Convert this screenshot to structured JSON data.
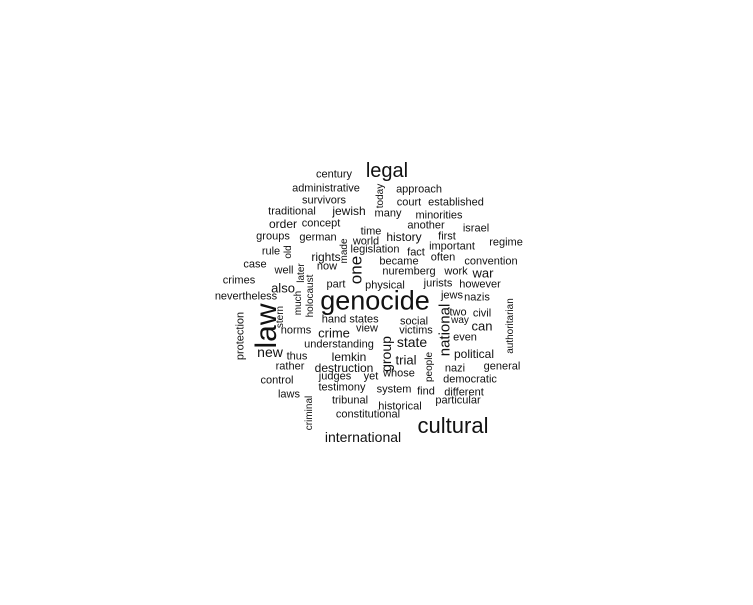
{
  "word_cloud": {
    "words": [
      {
        "text": "genocide"
      },
      {
        "text": "law",
        "vertical": true
      },
      {
        "text": "cultural"
      },
      {
        "text": "legal"
      },
      {
        "text": "international"
      },
      {
        "text": "one",
        "vertical": true
      },
      {
        "text": "national",
        "vertical": true
      },
      {
        "text": "state"
      },
      {
        "text": "new"
      },
      {
        "text": "group",
        "vertical": true
      },
      {
        "text": "jewish"
      },
      {
        "text": "crime"
      },
      {
        "text": "also"
      },
      {
        "text": "history"
      },
      {
        "text": "trial"
      },
      {
        "text": "war"
      },
      {
        "text": "political"
      },
      {
        "text": "destruction"
      },
      {
        "text": "lemkin"
      },
      {
        "text": "can"
      },
      {
        "text": "order"
      },
      {
        "text": "rights"
      },
      {
        "text": "century"
      },
      {
        "text": "administrative"
      },
      {
        "text": "survivors"
      },
      {
        "text": "today",
        "vertical": true
      },
      {
        "text": "approach"
      },
      {
        "text": "court"
      },
      {
        "text": "established"
      },
      {
        "text": "traditional"
      },
      {
        "text": "many"
      },
      {
        "text": "minorities"
      },
      {
        "text": "concept"
      },
      {
        "text": "another"
      },
      {
        "text": "israel"
      },
      {
        "text": "groups"
      },
      {
        "text": "german"
      },
      {
        "text": "time"
      },
      {
        "text": "world"
      },
      {
        "text": "first"
      },
      {
        "text": "regime"
      },
      {
        "text": "rule"
      },
      {
        "text": "legislation"
      },
      {
        "text": "fact"
      },
      {
        "text": "important"
      },
      {
        "text": "case"
      },
      {
        "text": "made",
        "vertical": true
      },
      {
        "text": "became"
      },
      {
        "text": "often"
      },
      {
        "text": "convention"
      },
      {
        "text": "crimes"
      },
      {
        "text": "well"
      },
      {
        "text": "old",
        "vertical": true
      },
      {
        "text": "later",
        "vertical": true
      },
      {
        "text": "now"
      },
      {
        "text": "nuremberg"
      },
      {
        "text": "work"
      },
      {
        "text": "part"
      },
      {
        "text": "physical"
      },
      {
        "text": "jurists"
      },
      {
        "text": "however"
      },
      {
        "text": "nevertheless"
      },
      {
        "text": "holocaust",
        "vertical": true
      },
      {
        "text": "much",
        "vertical": true
      },
      {
        "text": "jews"
      },
      {
        "text": "nazis"
      },
      {
        "text": "stern",
        "vertical": true
      },
      {
        "text": "two"
      },
      {
        "text": "civil"
      },
      {
        "text": "way"
      },
      {
        "text": "protection",
        "vertical": true
      },
      {
        "text": "hand"
      },
      {
        "text": "states"
      },
      {
        "text": "social"
      },
      {
        "text": "authoritarian",
        "vertical": true
      },
      {
        "text": "norms"
      },
      {
        "text": "view"
      },
      {
        "text": "victims"
      },
      {
        "text": "even"
      },
      {
        "text": "understanding"
      },
      {
        "text": "thus"
      },
      {
        "text": "people",
        "vertical": true
      },
      {
        "text": "rather"
      },
      {
        "text": "nazi"
      },
      {
        "text": "general"
      },
      {
        "text": "control"
      },
      {
        "text": "judges"
      },
      {
        "text": "yet"
      },
      {
        "text": "whose"
      },
      {
        "text": "democratic"
      },
      {
        "text": "laws"
      },
      {
        "text": "testimony"
      },
      {
        "text": "system"
      },
      {
        "text": "find"
      },
      {
        "text": "different"
      },
      {
        "text": "criminal",
        "vertical": true
      },
      {
        "text": "tribunal"
      },
      {
        "text": "particular"
      },
      {
        "text": "historical"
      },
      {
        "text": "constitutional"
      }
    ]
  }
}
